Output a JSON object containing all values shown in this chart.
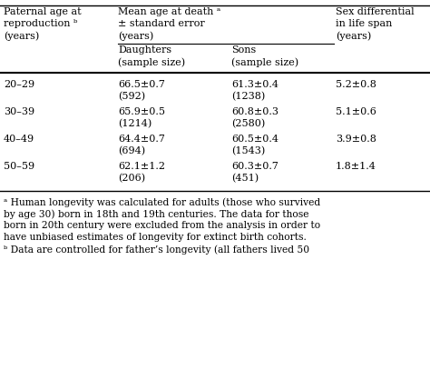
{
  "col1_header": [
    "Paternal age at",
    "reproduction ᵇ",
    "(years)"
  ],
  "col2_header": [
    "Mean age at death ᵃ",
    "± standard error",
    "(years)"
  ],
  "col3_header": [
    "Sex differential",
    "in life span",
    "(years)"
  ],
  "sub_header_daughters": [
    "Daughters",
    "(sample size)"
  ],
  "sub_header_sons": [
    "Sons",
    "(sample size)"
  ],
  "rows": [
    {
      "age": "20–29",
      "daughters": "66.5±0.7",
      "daughters_n": "(592)",
      "sons": "61.3±0.4",
      "sons_n": "(1238)",
      "sex_diff": "5.2±0.8"
    },
    {
      "age": "30–39",
      "daughters": "65.9±0.5",
      "daughters_n": "(1214)",
      "sons": "60.8±0.3",
      "sons_n": "(2580)",
      "sex_diff": "5.1±0.6"
    },
    {
      "age": "40–49",
      "daughters": "64.4±0.7",
      "daughters_n": "(694)",
      "sons": "60.5±0.4",
      "sons_n": "(1543)",
      "sex_diff": "3.9±0.8"
    },
    {
      "age": "50–59",
      "daughters": "62.1±1.2",
      "daughters_n": "(206)",
      "sons": "60.3±0.7",
      "sons_n": "(451)",
      "sex_diff": "1.8±1.4"
    }
  ],
  "footnote_a_lines": [
    "ᵃ Human longevity was calculated for adults (those who survived",
    "by age 30) born in 18th and 19th centuries. The data for those",
    "born in 20th century were excluded from the analysis in order to",
    "have unbiased estimates of longevity for extinct birth cohorts."
  ],
  "footnote_b": "ᵇ Data are controlled for father’s longevity (all fathers lived 50",
  "bg_color": "#ffffff",
  "text_color": "#000000",
  "font_size": 8.0,
  "font_family": "DejaVu Serif"
}
